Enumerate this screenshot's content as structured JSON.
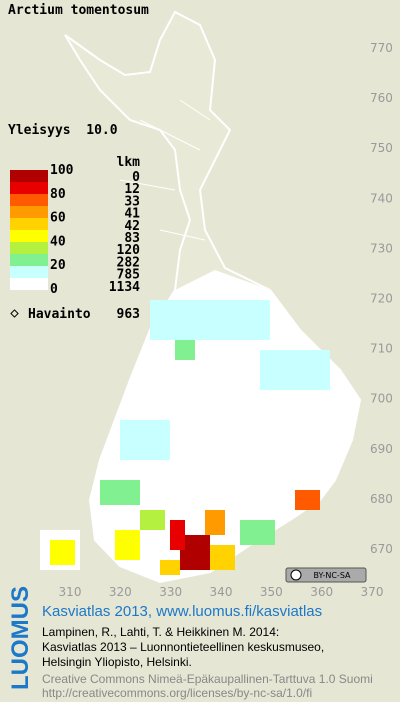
{
  "title": "Arctium tomentosum",
  "frequency": "Yleisyys  10.0",
  "legend": {
    "count_header": "lkm",
    "scale_labels": [
      100,
      80,
      60,
      40,
      20,
      0
    ],
    "classes": [
      {
        "color": "#b00000",
        "count": 0
      },
      {
        "color": "#e80000",
        "count": 12
      },
      {
        "color": "#ff5a00",
        "count": 33
      },
      {
        "color": "#ff9a00",
        "count": 41
      },
      {
        "color": "#ffd200",
        "count": 42
      },
      {
        "color": "#ffff00",
        "count": 83
      },
      {
        "color": "#b4f040",
        "count": 120
      },
      {
        "color": "#80f090",
        "count": 282
      },
      {
        "color": "#c8ffff",
        "count": 785
      },
      {
        "color": "#ffffff",
        "count": 1134
      }
    ],
    "observations": "Havainto",
    "observation_count": 963
  },
  "map": {
    "y_labels": [
      770,
      760,
      750,
      740,
      730,
      720,
      710,
      700,
      690,
      680,
      670
    ],
    "x_labels": [
      310,
      320,
      330,
      340,
      350,
      360,
      370
    ]
  },
  "license_badge": "BY-NC-SA",
  "footer": {
    "logo": "LUOMUS",
    "headline": "Kasviatlas 2013, www.luomus.fi/kasviatlas",
    "citation": [
      "Lampinen, R., Lahti, T. & Heikkinen M. 2014:",
      "Kasviatlas 2013 – Luonnontieteellinen keskusmuseo,",
      "Helsingin Yliopisto, Helsinki."
    ],
    "license": [
      "Creative Commons Nimeä-Epäkaupallinen-Tarttuva 1.0 Suomi",
      "http://creativecommons.org/licenses/by-nc-sa/1.0/fi"
    ]
  }
}
